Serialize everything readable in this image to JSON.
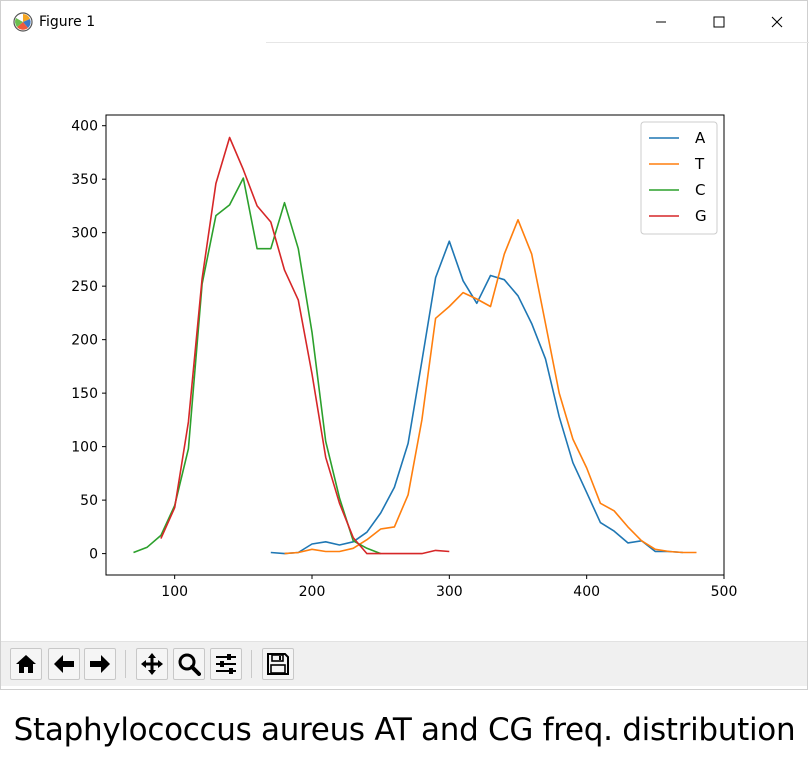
{
  "window": {
    "title": "Figure 1",
    "controls": [
      "minimize",
      "maximize",
      "close"
    ]
  },
  "toolbar": {
    "buttons": [
      "home-icon",
      "back-icon",
      "forward-icon",
      "pan-icon",
      "zoom-icon",
      "configure-subplots-icon",
      "save-icon"
    ]
  },
  "caption": "Staphylococcus aureus AT and CG freq. distribution",
  "chart_data": {
    "type": "line",
    "title": "",
    "xlabel": "",
    "ylabel": "",
    "xlim": [
      50,
      500
    ],
    "ylim": [
      -20,
      410
    ],
    "xticks": [
      100,
      200,
      300,
      400,
      500
    ],
    "yticks": [
      0,
      50,
      100,
      150,
      200,
      250,
      300,
      350,
      400
    ],
    "grid": false,
    "legend": "top-right",
    "series": [
      {
        "name": "A",
        "color": "#1f77b4",
        "x": [
          170,
          180,
          190,
          200,
          210,
          220,
          230,
          240,
          250,
          260,
          270,
          280,
          290,
          300,
          310,
          320,
          330,
          340,
          350,
          360,
          370,
          380,
          390,
          400,
          410,
          420,
          430,
          440,
          450,
          460,
          470
        ],
        "y": [
          1,
          0,
          1,
          9,
          11,
          8,
          11,
          20,
          38,
          62,
          103,
          180,
          258,
          292,
          255,
          234,
          260,
          256,
          241,
          215,
          182,
          128,
          85,
          57,
          29,
          21,
          10,
          12,
          2,
          2,
          1
        ]
      },
      {
        "name": "T",
        "color": "#ff7f0e",
        "x": [
          180,
          190,
          200,
          210,
          220,
          230,
          240,
          250,
          260,
          270,
          280,
          290,
          300,
          310,
          320,
          330,
          340,
          350,
          360,
          370,
          380,
          390,
          400,
          410,
          420,
          430,
          440,
          450,
          460,
          470,
          480
        ],
        "y": [
          0,
          1,
          4,
          2,
          2,
          5,
          13,
          23,
          25,
          55,
          125,
          220,
          231,
          244,
          238,
          231,
          280,
          312,
          280,
          215,
          150,
          107,
          80,
          47,
          40,
          25,
          12,
          4,
          2,
          1,
          1
        ]
      },
      {
        "name": "C",
        "color": "#2ca02c",
        "x": [
          70,
          80,
          90,
          100,
          110,
          120,
          130,
          140,
          150,
          160,
          170,
          180,
          190,
          200,
          210,
          220,
          230,
          240,
          250
        ],
        "y": [
          1,
          6,
          17,
          45,
          98,
          252,
          316,
          326,
          351,
          285,
          285,
          328,
          285,
          207,
          105,
          52,
          12,
          5,
          0
        ]
      },
      {
        "name": "G",
        "color": "#d62728",
        "x": [
          90,
          100,
          110,
          120,
          130,
          140,
          150,
          160,
          170,
          180,
          190,
          200,
          210,
          220,
          230,
          240,
          250,
          260,
          270,
          280,
          290,
          300
        ],
        "y": [
          14,
          43,
          123,
          257,
          346,
          389,
          359,
          325,
          310,
          265,
          237,
          168,
          90,
          47,
          15,
          0,
          0,
          0,
          0,
          0,
          3,
          2
        ]
      }
    ]
  }
}
